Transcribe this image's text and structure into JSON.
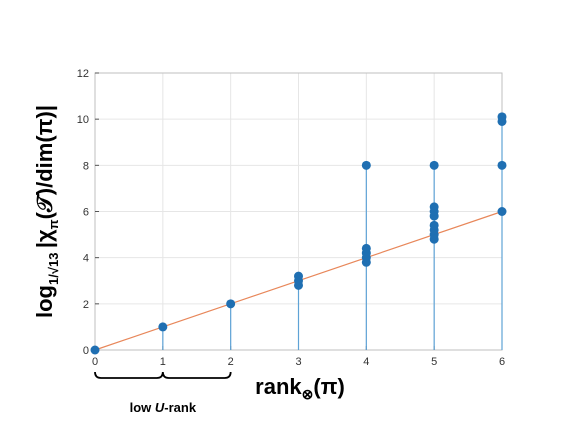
{
  "chart_data": {
    "type": "scatter",
    "xlabel": "rank⊗(π)",
    "ylabel": "log1/√13 |χπ(𝒯)/dim(π)|",
    "xlim": [
      0,
      6
    ],
    "ylim": [
      0,
      12
    ],
    "xticks": [
      0,
      1,
      2,
      3,
      4,
      5,
      6
    ],
    "yticks": [
      0,
      2,
      4,
      6,
      8,
      10,
      12
    ],
    "grid": true,
    "marker_color": "#1f6fb2",
    "stem_color": "#5fa3d6",
    "line_color": "#e8875a",
    "points": [
      {
        "x": 0,
        "y": 0
      },
      {
        "x": 1,
        "y": 1
      },
      {
        "x": 2,
        "y": 2
      },
      {
        "x": 3,
        "y": 2.8
      },
      {
        "x": 3,
        "y": 3.0
      },
      {
        "x": 3,
        "y": 3.2
      },
      {
        "x": 4,
        "y": 3.8
      },
      {
        "x": 4,
        "y": 4.0
      },
      {
        "x": 4,
        "y": 4.2
      },
      {
        "x": 4,
        "y": 4.4
      },
      {
        "x": 4,
        "y": 8.0
      },
      {
        "x": 5,
        "y": 4.8
      },
      {
        "x": 5,
        "y": 5.0
      },
      {
        "x": 5,
        "y": 5.2
      },
      {
        "x": 5,
        "y": 5.4
      },
      {
        "x": 5,
        "y": 5.8
      },
      {
        "x": 5,
        "y": 6.0
      },
      {
        "x": 5,
        "y": 6.2
      },
      {
        "x": 5,
        "y": 8.0
      },
      {
        "x": 6,
        "y": 6.0
      },
      {
        "x": 6,
        "y": 8.0
      },
      {
        "x": 6,
        "y": 9.9
      },
      {
        "x": 6,
        "y": 10.1
      }
    ],
    "reference_line": {
      "x": [
        0,
        6
      ],
      "y": [
        0,
        6
      ]
    },
    "annotation": {
      "text": "low U-rank",
      "x_from": 0,
      "x_to": 2
    }
  }
}
